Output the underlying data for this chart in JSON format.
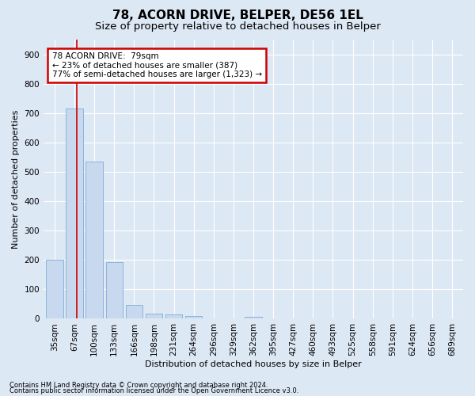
{
  "title": "78, ACORN DRIVE, BELPER, DE56 1EL",
  "subtitle": "Size of property relative to detached houses in Belper",
  "xlabel": "Distribution of detached houses by size in Belper",
  "ylabel": "Number of detached properties",
  "categories": [
    "35sqm",
    "67sqm",
    "100sqm",
    "133sqm",
    "166sqm",
    "198sqm",
    "231sqm",
    "264sqm",
    "296sqm",
    "329sqm",
    "362sqm",
    "395sqm",
    "427sqm",
    "460sqm",
    "493sqm",
    "525sqm",
    "558sqm",
    "591sqm",
    "624sqm",
    "656sqm",
    "689sqm"
  ],
  "bar_values": [
    200,
    715,
    535,
    193,
    46,
    18,
    14,
    10,
    0,
    0,
    7,
    0,
    0,
    0,
    0,
    0,
    0,
    0,
    0,
    0,
    0
  ],
  "bar_color": "#c8d9ef",
  "bar_edge_color": "#8ab4d8",
  "annotation_text": "78 ACORN DRIVE:  79sqm\n← 23% of detached houses are smaller (387)\n77% of semi-detached houses are larger (1,323) →",
  "annotation_box_color": "#ffffff",
  "annotation_box_edge_color": "#cc0000",
  "ylim": [
    0,
    950
  ],
  "yticks": [
    0,
    100,
    200,
    300,
    400,
    500,
    600,
    700,
    800,
    900
  ],
  "footer_line1": "Contains HM Land Registry data © Crown copyright and database right 2024.",
  "footer_line2": "Contains public sector information licensed under the Open Government Licence v3.0.",
  "bg_color": "#dde8f5",
  "grid_color": "#ffffff",
  "title_fontsize": 11,
  "subtitle_fontsize": 9.5,
  "ylabel_fontsize": 8,
  "xlabel_fontsize": 8,
  "tick_fontsize": 7.5,
  "annotation_fontsize": 7.5,
  "footer_fontsize": 6,
  "red_line_color": "#cc0000",
  "red_line_x": 1.12
}
